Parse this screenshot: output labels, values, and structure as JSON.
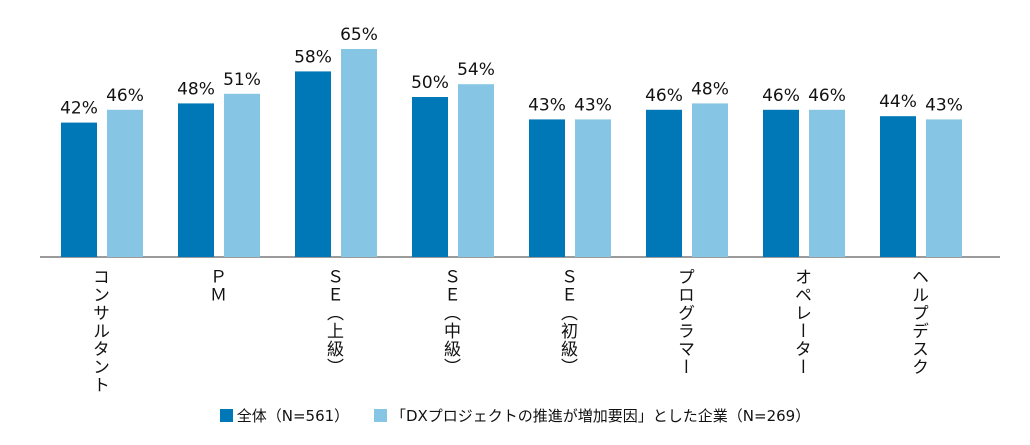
{
  "chart_data": {
    "type": "bar",
    "title": "",
    "xlabel": "",
    "ylabel": "",
    "ylim": [
      0,
      70
    ],
    "grid": false,
    "legend_position": "bottom",
    "value_suffix": "%",
    "categories": [
      "コンサルタント",
      "ＰＭ",
      "ＳＥ（上級）",
      "ＳＥ（中級）",
      "ＳＥ（初級）",
      "プログラマー",
      "オペレーター",
      "ヘルプデスク"
    ],
    "series": [
      {
        "name": "全体（N=561）",
        "color": "#0077b6",
        "values": [
          42,
          48,
          58,
          50,
          43,
          46,
          46,
          44
        ]
      },
      {
        "name": "「DXプロジェクトの推進が増加要因」とした企業（N=269）",
        "color": "#86c5e3",
        "values": [
          46,
          51,
          65,
          54,
          43,
          48,
          46,
          43
        ]
      }
    ]
  }
}
